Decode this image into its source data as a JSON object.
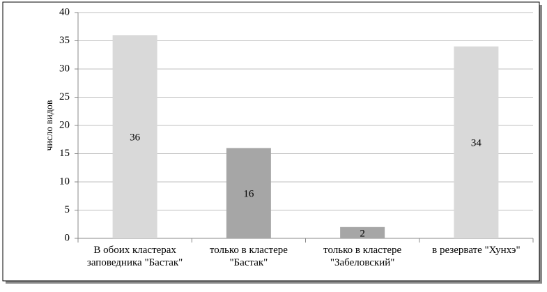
{
  "chart_data": {
    "type": "bar",
    "y_label": "число видов",
    "categories": [
      "В обоих кластерах\nзаповедника \"Бастак\"",
      "только в кластере\n\"Бастак\"",
      "только в кластере\n\"Забеловский\"",
      "в резервате \"Хунхэ\""
    ],
    "values": [
      36,
      16,
      2,
      34
    ],
    "colors": [
      "#d9d9d9",
      "#a6a6a6",
      "#a6a6a6",
      "#d9d9d9"
    ],
    "ylim": [
      0,
      40
    ],
    "yticks": [
      0,
      5,
      10,
      15,
      20,
      25,
      30,
      35,
      40
    ],
    "grid": true
  }
}
